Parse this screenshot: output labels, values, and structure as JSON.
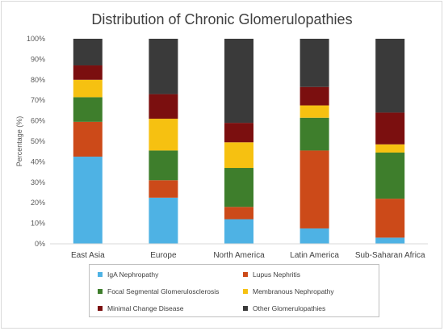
{
  "chart_data": {
    "type": "bar",
    "stacked": true,
    "title": "Distribution of Chronic Glomerulopathies",
    "ylabel": "Percentage (%)",
    "xlabel": "",
    "ylim": [
      0,
      100
    ],
    "yticks": [
      "0%",
      "10%",
      "20%",
      "30%",
      "40%",
      "50%",
      "60%",
      "70%",
      "80%",
      "90%",
      "100%"
    ],
    "categories": [
      "East Asia",
      "Europe",
      "North America",
      "Latin America",
      "Sub-Saharan Africa"
    ],
    "series": [
      {
        "name": "IgA Nephropathy",
        "color": "#4eb2e4",
        "values": [
          42.5,
          22.5,
          12,
          7.5,
          3
        ]
      },
      {
        "name": "Lupus Nephritis",
        "color": "#cc4a19",
        "values": [
          17,
          8.5,
          6,
          38,
          19
        ]
      },
      {
        "name": "Focal Segmental Glomerulosclerosis",
        "color": "#3e7e2c",
        "values": [
          12,
          14.5,
          19,
          16,
          22.5
        ]
      },
      {
        "name": "Membranous Nephropathy",
        "color": "#f6c111",
        "values": [
          8.5,
          15.5,
          12.5,
          6,
          4
        ]
      },
      {
        "name": "Minimal Change Disease",
        "color": "#7b0f0f",
        "values": [
          7,
          12,
          9.5,
          9,
          15.5
        ]
      },
      {
        "name": "Other Glomerulopathies",
        "color": "#3a3a3a",
        "values": [
          13,
          27,
          41,
          23.5,
          36
        ]
      }
    ],
    "grid": false,
    "legend_position": "bottom"
  }
}
